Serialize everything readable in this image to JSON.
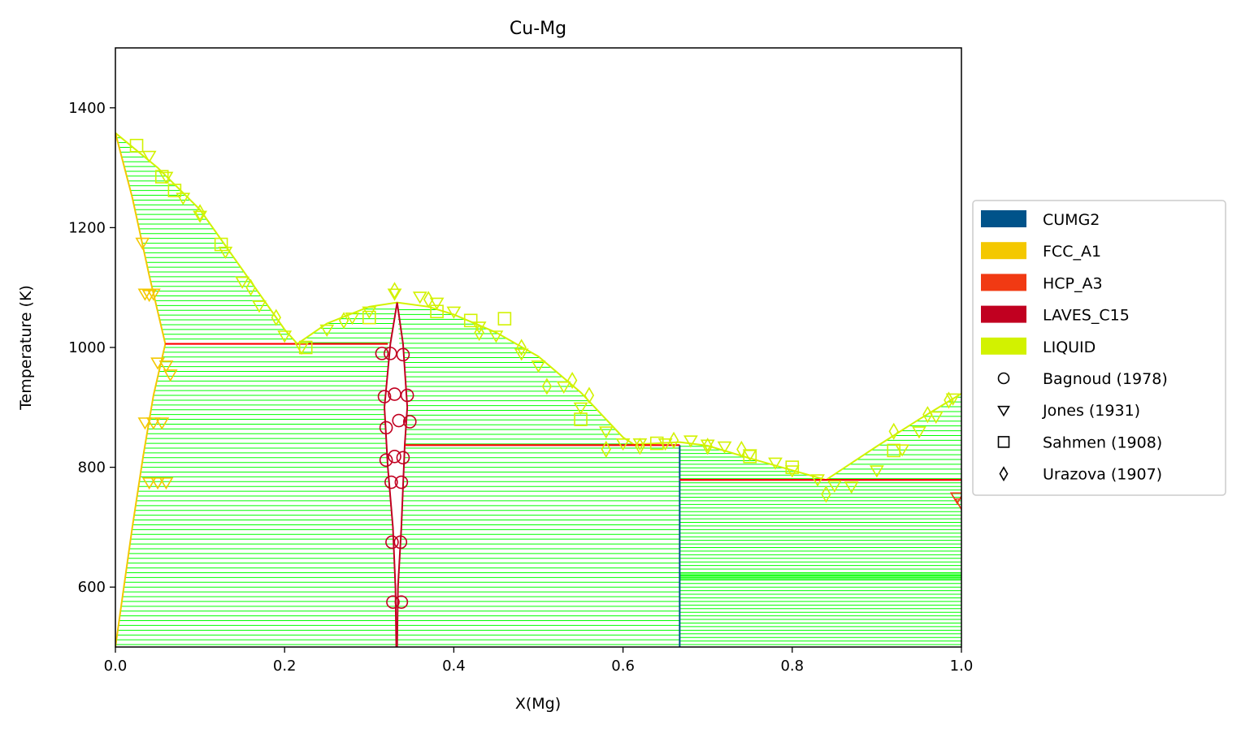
{
  "chart_data": {
    "type": "scatter",
    "title": "Cu-Mg",
    "xlabel": "X(Mg)",
    "ylabel": "Temperature (K)",
    "xlim": [
      0,
      1
    ],
    "ylim": [
      500,
      1500
    ],
    "x_ticks": [
      0.0,
      0.2,
      0.4,
      0.6,
      0.8,
      1.0
    ],
    "x_tick_labels": [
      "0.0",
      "0.2",
      "0.4",
      "0.6",
      "0.8",
      "1.0"
    ],
    "y_ticks": [
      600,
      800,
      1000,
      1200,
      1400
    ],
    "y_tick_labels": [
      "600",
      "800",
      "1000",
      "1200",
      "1400"
    ],
    "grid": false,
    "legend_position": "right-outside",
    "phases": [
      {
        "name": "CUMG2",
        "color": "#00538a"
      },
      {
        "name": "FCC_A1",
        "color": "#f4c800"
      },
      {
        "name": "HCP_A3",
        "color": "#f13a13"
      },
      {
        "name": "LAVES_C15",
        "color": "#c10020"
      },
      {
        "name": "LIQUID",
        "color": "#d2f200"
      }
    ],
    "datasets": [
      {
        "name": "Bagnoud (1978)",
        "marker": "circle"
      },
      {
        "name": "Jones (1931)",
        "marker": "triangle-down"
      },
      {
        "name": "Sahmen (1908)",
        "marker": "square"
      },
      {
        "name": "Urazova (1907)",
        "marker": "diamond"
      }
    ],
    "colors": {
      "tie_line": "#00ff00",
      "invariant": "#ff0000"
    },
    "boundaries": [
      {
        "phase": "LIQUID",
        "points": [
          [
            0,
            1358
          ],
          [
            0.05,
            1300
          ],
          [
            0.1,
            1230
          ],
          [
            0.15,
            1130
          ],
          [
            0.2,
            1030
          ],
          [
            0.215,
            1006
          ],
          [
            0.25,
            1040
          ],
          [
            0.3,
            1068
          ],
          [
            0.333,
            1075
          ],
          [
            0.37,
            1068
          ],
          [
            0.4,
            1055
          ],
          [
            0.45,
            1025
          ],
          [
            0.5,
            985
          ],
          [
            0.55,
            925
          ],
          [
            0.6,
            850
          ],
          [
            0.613,
            838
          ],
          [
            0.667,
            842
          ],
          [
            0.7,
            836
          ],
          [
            0.75,
            815
          ],
          [
            0.8,
            795
          ],
          [
            0.84,
            779
          ],
          [
            0.9,
            835
          ],
          [
            0.95,
            880
          ],
          [
            1.0,
            923
          ]
        ]
      },
      {
        "phase": "FCC_A1",
        "points": [
          [
            0,
            1358
          ],
          [
            0.02,
            1250
          ],
          [
            0.04,
            1120
          ],
          [
            0.059,
            1006
          ]
        ]
      },
      {
        "phase": "FCC_A1",
        "points": [
          [
            0.059,
            1006
          ],
          [
            0.045,
            920
          ],
          [
            0.033,
            820
          ],
          [
            0.02,
            700
          ],
          [
            0.01,
            600
          ],
          [
            0,
            500
          ]
        ]
      },
      {
        "phase": "LAVES_C15",
        "points": [
          [
            0.333,
            1075
          ],
          [
            0.325,
            1006
          ],
          [
            0.318,
            900
          ],
          [
            0.322,
            800
          ],
          [
            0.328,
            700
          ],
          [
            0.331,
            600
          ],
          [
            0.332,
            500
          ]
        ]
      },
      {
        "phase": "LAVES_C15",
        "points": [
          [
            0.333,
            1075
          ],
          [
            0.34,
            1006
          ],
          [
            0.345,
            900
          ],
          [
            0.342,
            837
          ],
          [
            0.338,
            700
          ],
          [
            0.334,
            600
          ],
          [
            0.333,
            500
          ]
        ]
      },
      {
        "phase": "CUMG2",
        "points": [
          [
            0.667,
            500
          ],
          [
            0.667,
            837
          ]
        ]
      }
    ],
    "invariants": [
      {
        "x": [
          0.059,
          0.322
        ],
        "y": 1006
      },
      {
        "x": [
          0.342,
          0.667
        ],
        "y": 837
      },
      {
        "x": [
          0.667,
          1.0
        ],
        "y": 779
      }
    ],
    "tie_line_regions": [
      {
        "tmin": 1006,
        "tmax": 1350,
        "step": 8,
        "left": [
          [
            0,
            1358
          ],
          [
            0.02,
            1250
          ],
          [
            0.04,
            1120
          ],
          [
            0.059,
            1006
          ]
        ],
        "right": [
          [
            0,
            1358
          ],
          [
            0.05,
            1300
          ],
          [
            0.1,
            1230
          ],
          [
            0.15,
            1130
          ],
          [
            0.2,
            1030
          ],
          [
            0.215,
            1006
          ]
        ]
      },
      {
        "tmin": 504,
        "tmax": 1002,
        "step": 8,
        "left": [
          [
            0,
            500
          ],
          [
            0.01,
            600
          ],
          [
            0.02,
            700
          ],
          [
            0.033,
            820
          ],
          [
            0.045,
            920
          ],
          [
            0.059,
            1006
          ]
        ],
        "right": [
          [
            0.332,
            500
          ],
          [
            0.331,
            600
          ],
          [
            0.328,
            700
          ],
          [
            0.322,
            800
          ],
          [
            0.318,
            900
          ],
          [
            0.325,
            1006
          ]
        ]
      },
      {
        "tmin": 1008,
        "tmax": 1070,
        "step": 8,
        "left": [
          [
            0.215,
            1006
          ],
          [
            0.25,
            1040
          ],
          [
            0.3,
            1068
          ],
          [
            0.333,
            1075
          ]
        ],
        "right": [
          [
            0.325,
            1006
          ],
          [
            0.333,
            1075
          ]
        ]
      },
      {
        "tmin": 839,
        "tmax": 1070,
        "step": 8,
        "left": [
          [
            0.34,
            1006
          ],
          [
            0.345,
            900
          ],
          [
            0.342,
            837
          ],
          [
            0.333,
            1075
          ]
        ],
        "right": [
          [
            0.333,
            1075
          ],
          [
            0.37,
            1068
          ],
          [
            0.4,
            1055
          ],
          [
            0.45,
            1025
          ],
          [
            0.5,
            985
          ],
          [
            0.55,
            925
          ],
          [
            0.6,
            850
          ],
          [
            0.613,
            838
          ]
        ]
      },
      {
        "tmin": 504,
        "tmax": 835,
        "step": 8,
        "left": [
          [
            0.333,
            500
          ],
          [
            0.334,
            600
          ],
          [
            0.338,
            700
          ],
          [
            0.342,
            837
          ]
        ],
        "right": [
          [
            0.667,
            500
          ],
          [
            0.667,
            837
          ]
        ]
      },
      {
        "tmin": 781,
        "tmax": 840,
        "step": 6,
        "left": [
          [
            0.667,
            842
          ],
          [
            0.667,
            780
          ]
        ],
        "right": [
          [
            0.667,
            842
          ],
          [
            0.7,
            836
          ],
          [
            0.75,
            815
          ],
          [
            0.8,
            795
          ],
          [
            0.84,
            779
          ]
        ]
      },
      {
        "tmin": 781,
        "tmax": 920,
        "step": 8,
        "left": [
          [
            0.84,
            779
          ],
          [
            0.9,
            835
          ],
          [
            0.95,
            880
          ],
          [
            1.0,
            923
          ]
        ],
        "right": [
          [
            1.0,
            780
          ],
          [
            1.0,
            923
          ]
        ]
      },
      {
        "tmin": 504,
        "tmax": 777,
        "step": 6,
        "left": [
          [
            0.667,
            500
          ],
          [
            0.667,
            780
          ]
        ],
        "right": [
          [
            1.0,
            500
          ],
          [
            1.0,
            780
          ]
        ]
      },
      {
        "tmin": 612,
        "tmax": 624,
        "step": 2,
        "left": [
          [
            0.667,
            500
          ],
          [
            0.667,
            780
          ]
        ],
        "right": [
          [
            1.0,
            500
          ],
          [
            1.0,
            780
          ]
        ]
      }
    ],
    "points": [
      {
        "dataset": "Sahmen (1908)",
        "phase": "LIQUID",
        "x": [
          0.025,
          0.055,
          0.07,
          0.125,
          0.225,
          0.3,
          0.38,
          0.42,
          0.46,
          0.55,
          0.64,
          0.75,
          0.8,
          0.92
        ],
        "y": [
          1337,
          1285,
          1262,
          1172,
          1000,
          1050,
          1060,
          1045,
          1048,
          880,
          840,
          818,
          800,
          828
        ]
      },
      {
        "dataset": "Jones (1931)",
        "phase": "LIQUID",
        "x": [
          0.04,
          0.06,
          0.08,
          0.1,
          0.13,
          0.15,
          0.17,
          0.2,
          0.22,
          0.25,
          0.28,
          0.3,
          0.33,
          0.36,
          0.38,
          0.4,
          0.43,
          0.45,
          0.48,
          0.5,
          0.53,
          0.55,
          0.58,
          0.6,
          0.62,
          0.65,
          0.68,
          0.7,
          0.72,
          0.75,
          0.78,
          0.8,
          0.83,
          0.85,
          0.87,
          0.9,
          0.93,
          0.95,
          0.97,
          0.99
        ],
        "y": [
          1320,
          1285,
          1250,
          1220,
          1160,
          1110,
          1070,
          1020,
          1000,
          1030,
          1050,
          1060,
          1090,
          1085,
          1075,
          1060,
          1035,
          1020,
          990,
          970,
          935,
          900,
          860,
          840,
          840,
          840,
          845,
          838,
          835,
          822,
          808,
          795,
          780,
          770,
          768,
          795,
          830,
          860,
          885,
          915
        ]
      },
      {
        "dataset": "Urazova (1907)",
        "phase": "LIQUID",
        "x": [
          0.1,
          0.16,
          0.19,
          0.27,
          0.33,
          0.37,
          0.43,
          0.48,
          0.51,
          0.54,
          0.56,
          0.58,
          0.62,
          0.66,
          0.7,
          0.74,
          0.84,
          0.92,
          0.96,
          0.985
        ],
        "y": [
          1225,
          1100,
          1050,
          1045,
          1095,
          1080,
          1025,
          1000,
          935,
          945,
          920,
          830,
          835,
          845,
          835,
          830,
          755,
          860,
          888,
          912
        ]
      },
      {
        "dataset": "Jones (1931)",
        "phase": "FCC_A1",
        "x": [
          0.032,
          0.035,
          0.04,
          0.045,
          0.05,
          0.06,
          0.065,
          0.035,
          0.045,
          0.055,
          0.04,
          0.05,
          0.06
        ],
        "y": [
          1175,
          1090,
          1088,
          1090,
          975,
          970,
          955,
          875,
          875,
          875,
          775,
          775,
          775
        ]
      },
      {
        "dataset": "Bagnoud (1978)",
        "phase": "LAVES_C15",
        "x": [
          0.315,
          0.325,
          0.34,
          0.318,
          0.33,
          0.345,
          0.32,
          0.335,
          0.348,
          0.32,
          0.33,
          0.34,
          0.326,
          0.338,
          0.327,
          0.337,
          0.328,
          0.338
        ],
        "y": [
          990,
          990,
          988,
          918,
          922,
          920,
          866,
          878,
          876,
          812,
          818,
          816,
          775,
          775,
          675,
          675,
          575,
          575
        ]
      },
      {
        "dataset": "Jones (1931)",
        "phase": "HCP_A3",
        "x": [
          0.995,
          1.0
        ],
        "y": [
          750,
          740
        ]
      }
    ]
  }
}
